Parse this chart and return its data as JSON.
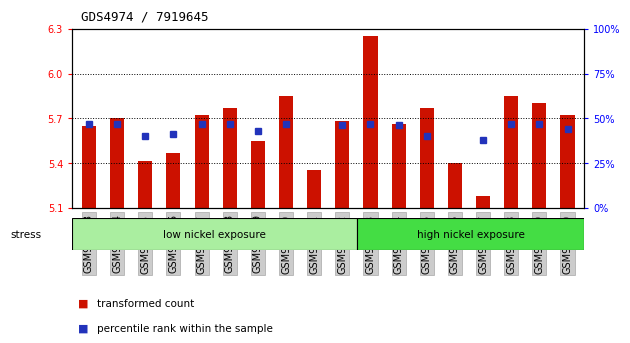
{
  "title": "GDS4974 / 7919645",
  "samples": [
    "GSM992693",
    "GSM992694",
    "GSM992695",
    "GSM992696",
    "GSM992697",
    "GSM992698",
    "GSM992699",
    "GSM992700",
    "GSM992701",
    "GSM992702",
    "GSM992703",
    "GSM992704",
    "GSM992705",
    "GSM992706",
    "GSM992707",
    "GSM992708",
    "GSM992709",
    "GSM992710"
  ],
  "red_values": [
    5.65,
    5.7,
    5.41,
    5.47,
    5.72,
    5.77,
    5.55,
    5.85,
    5.35,
    5.68,
    6.25,
    5.66,
    5.77,
    5.4,
    5.18,
    5.85,
    5.8,
    5.72
  ],
  "blue_values": [
    47,
    47,
    40,
    41,
    47,
    47,
    43,
    47,
    null,
    46,
    47,
    46,
    40,
    null,
    38,
    47,
    47,
    44
  ],
  "ylim_left": [
    5.1,
    6.3
  ],
  "ylim_right": [
    0,
    100
  ],
  "yticks_left": [
    5.1,
    5.4,
    5.7,
    6.0,
    6.3
  ],
  "yticks_right": [
    0,
    25,
    50,
    75,
    100
  ],
  "ytick_labels_right": [
    "0%",
    "25%",
    "50%",
    "75%",
    "100%"
  ],
  "base": 5.1,
  "group1_label": "low nickel exposure",
  "group2_label": "high nickel exposure",
  "group1_count": 10,
  "group2_count": 8,
  "stress_label": "stress",
  "legend1": "transformed count",
  "legend2": "percentile rank within the sample",
  "bar_color": "#cc1100",
  "blue_color": "#2233bb",
  "group1_color": "#aaeea0",
  "group2_color": "#44dd44",
  "tick_fontsize": 7,
  "bar_width": 0.5
}
